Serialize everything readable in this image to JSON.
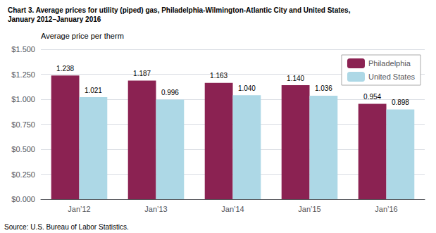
{
  "chart_data": {
    "type": "bar",
    "title": "Chart 3. Average prices for utility (piped) gas, Philadelphia-Wilmington-Atlantic City and United States,",
    "subtitle": "January 2012–January 2016",
    "y_label": "Average price per therm",
    "annotations": [
      "Source: U.S. Bureau of Labor Statistics."
    ],
    "categories": [
      "Jan’12",
      "Jan’13",
      "Jan’14",
      "Jan’15",
      "Jan’16"
    ],
    "series": [
      {
        "name": "Philadelphia",
        "color": "#8B2252",
        "values": [
          1.238,
          1.187,
          1.163,
          1.14,
          0.954
        ],
        "value_labels": [
          "1.238",
          "1.187",
          "1.163",
          "1.140",
          "0.954"
        ]
      },
      {
        "name": "United States",
        "color": "#ADD8E6",
        "values": [
          1.021,
          0.996,
          1.04,
          1.036,
          0.898
        ],
        "value_labels": [
          "1.021",
          "0.996",
          "1.040",
          "1.036",
          "0.898"
        ]
      }
    ],
    "ylim": [
      0,
      1.5
    ],
    "yticks": [
      {
        "value": 0.0,
        "label": "$0.000"
      },
      {
        "value": 0.25,
        "label": "$0.250"
      },
      {
        "value": 0.5,
        "label": "$0.500"
      },
      {
        "value": 0.75,
        "label": "$0.750"
      },
      {
        "value": 1.0,
        "label": "$1.000"
      },
      {
        "value": 1.25,
        "label": "$1.250"
      },
      {
        "value": 1.5,
        "label": "$1.500"
      }
    ],
    "grid": true,
    "legend": "upper right",
    "data_labels": true
  }
}
